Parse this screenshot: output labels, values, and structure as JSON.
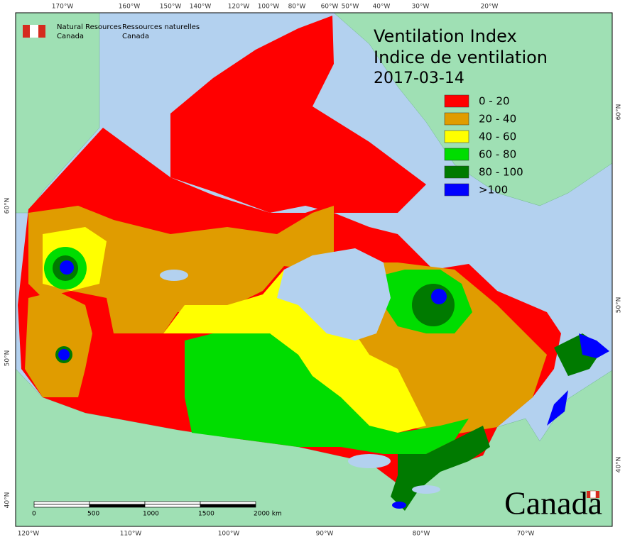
{
  "header": {
    "org_en": [
      "Natural Resources",
      "Canada"
    ],
    "org_fr": [
      "Ressources naturelles",
      "Canada"
    ]
  },
  "title": [
    "Ventilation Index",
    "Indice de ventilation"
  ],
  "date": "2017-03-14",
  "legend": [
    {
      "label": "0 - 20",
      "color": "#ff0000"
    },
    {
      "label": "20 - 40",
      "color": "#e09c00"
    },
    {
      "label": "40 - 60",
      "color": "#ffff00"
    },
    {
      "label": "60 - 80",
      "color": "#00dd00"
    },
    {
      "label": "80 - 100",
      "color": "#007a00"
    },
    {
      "label": ">100",
      "color": "#0000ff"
    }
  ],
  "graticule": {
    "top": [
      "170°W",
      "160°W",
      "150°W",
      "140°W",
      "120°W",
      "100°W",
      "80°W",
      "60°W",
      "50°W",
      "40°W",
      "30°W",
      "20°W"
    ],
    "bottom": [
      "120°W",
      "110°W",
      "100°W",
      "90°W",
      "80°W",
      "70°W"
    ],
    "left": [
      "60°N",
      "50°N",
      "40°N"
    ],
    "right": [
      "60°N",
      "50°N",
      "40°N"
    ]
  },
  "scale_bar": [
    "0",
    "500",
    "1000",
    "1500",
    "2000  km"
  ],
  "wordmark": "Canada"
}
